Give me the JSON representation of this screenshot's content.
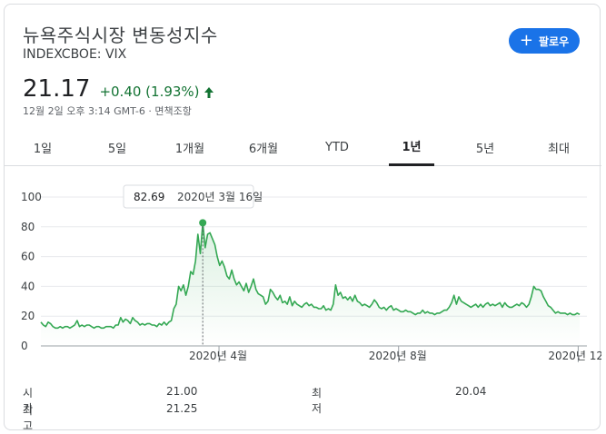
{
  "header": {
    "title": "뉴욕주식시장 변동성지수",
    "ticker": "INDEXCBOE: VIX",
    "follow_label": "팔로우",
    "price": "21.17",
    "change": "+0.40 (1.93%)",
    "meta": "12월 2일 오후 3:14 GMT-6 · 면책조항"
  },
  "colors": {
    "accent": "#1a73e8",
    "up": "#137333",
    "line": "#34a853"
  },
  "tabs": [
    {
      "label": "1일"
    },
    {
      "label": "5일"
    },
    {
      "label": "1개월"
    },
    {
      "label": "6개월"
    },
    {
      "label": "YTD"
    },
    {
      "label": "1년",
      "active": true
    },
    {
      "label": "5년"
    },
    {
      "label": "최대"
    }
  ],
  "tooltip": {
    "value": "82.69",
    "date": "2020년 3월 16일"
  },
  "chart_data": {
    "type": "line",
    "ylim": [
      0,
      100
    ],
    "yticks": [
      "100",
      "80",
      "60",
      "40",
      "20",
      "0"
    ],
    "xticks": [
      "2020년 4월",
      "2020년 8월",
      "2020년 12월"
    ],
    "x_range": [
      "2019-12-02",
      "2020-12-02"
    ],
    "series": [
      {
        "values": [
          16,
          14,
          13,
          16,
          15,
          13,
          12,
          12,
          13,
          12,
          13,
          13,
          12,
          13,
          14,
          17,
          13,
          14,
          13,
          14,
          14,
          13,
          12,
          13,
          13,
          12,
          12,
          13,
          13,
          13,
          12,
          14,
          14,
          19,
          16,
          18,
          17,
          15,
          19,
          17,
          16,
          14,
          15,
          14,
          15,
          15,
          14,
          14,
          13,
          15,
          14,
          16,
          14,
          16,
          17,
          25,
          28,
          40,
          37,
          41,
          34,
          40,
          50,
          48,
          57,
          75,
          62,
          82.69,
          66,
          75,
          76,
          72,
          68,
          60,
          54,
          57,
          53,
          47,
          45,
          51,
          45,
          41,
          43,
          40,
          37,
          42,
          36,
          40,
          45,
          38,
          35,
          34,
          33,
          28,
          30,
          38,
          36,
          33,
          31,
          34,
          29,
          30,
          28,
          33,
          27,
          30,
          28,
          27,
          26,
          28,
          29,
          27,
          28,
          26,
          26,
          25,
          25,
          27,
          24,
          25,
          24,
          28,
          41,
          34,
          36,
          32,
          33,
          31,
          33,
          30,
          34,
          30,
          29,
          27,
          28,
          27,
          26,
          28,
          31,
          29,
          26,
          25,
          26,
          24,
          26,
          27,
          24,
          25,
          24,
          23,
          23,
          24,
          23,
          23,
          22,
          21,
          22,
          22,
          24,
          22,
          23,
          22,
          22,
          21,
          22,
          22,
          23,
          24,
          24,
          26,
          29,
          34,
          28,
          33,
          30,
          29,
          28,
          27,
          26,
          27,
          28,
          26,
          28,
          26,
          28,
          29,
          27,
          28,
          27,
          28,
          29,
          26,
          29,
          27,
          26,
          26,
          27,
          28,
          27,
          29,
          28,
          26,
          28,
          33,
          40,
          38,
          38,
          37,
          33,
          30,
          27,
          26,
          24,
          22,
          23,
          22,
          22,
          22,
          21,
          22,
          21,
          21,
          22,
          21.17
        ]
      }
    ]
  },
  "stats": [
    {
      "label": "시가",
      "value": "21.00"
    },
    {
      "label": "최저",
      "value": "20.04"
    },
    {
      "label": "최고",
      "value": "21.25"
    }
  ]
}
